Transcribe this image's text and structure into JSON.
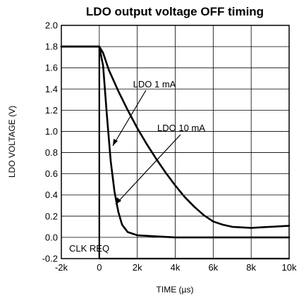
{
  "chart_data": {
    "type": "line",
    "title": "LDO output voltage OFF timing",
    "xlabel": "TIME (µs)",
    "ylabel": "LDO VOLTAGE (V)",
    "xlim": [
      -2000,
      10000
    ],
    "ylim": [
      -0.2,
      2.0
    ],
    "x_ticks": [
      -2000,
      0,
      2000,
      4000,
      6000,
      8000,
      10000
    ],
    "x_tick_labels": [
      "-2k",
      "0",
      "2k",
      "4k",
      "6k",
      "8k",
      "10k"
    ],
    "y_ticks": [
      -0.2,
      0.0,
      0.2,
      0.4,
      0.6,
      0.8,
      1.0,
      1.2,
      1.4,
      1.6,
      1.8,
      2.0
    ],
    "y_tick_labels": [
      "-0.2",
      "0.0",
      "0.2",
      "0.4",
      "0.6",
      "0.8",
      "1.0",
      "1.2",
      "1.4",
      "1.6",
      "1.8",
      "2.0"
    ],
    "grid": true,
    "series": [
      {
        "name": "LDO 1 mA",
        "x": [
          -2000,
          -1000,
          0,
          200,
          500,
          1000,
          1500,
          2000,
          2500,
          3000,
          3500,
          4000,
          4500,
          5000,
          5500,
          6000,
          6500,
          7000,
          8000,
          9000,
          10000
        ],
        "y": [
          1.8,
          1.8,
          1.8,
          1.74,
          1.58,
          1.38,
          1.2,
          1.03,
          0.88,
          0.74,
          0.61,
          0.49,
          0.38,
          0.29,
          0.21,
          0.15,
          0.12,
          0.1,
          0.09,
          0.1,
          0.11
        ]
      },
      {
        "name": "LDO 10 mA",
        "x": [
          -2000,
          -1000,
          0,
          200,
          400,
          600,
          800,
          1000,
          1200,
          1500,
          2000,
          3000,
          4000,
          6000,
          8000,
          10000
        ],
        "y": [
          1.8,
          1.8,
          1.8,
          1.62,
          1.15,
          0.72,
          0.43,
          0.24,
          0.12,
          0.05,
          0.02,
          0.01,
          0.0,
          0.0,
          0.0,
          0.0
        ]
      },
      {
        "name": "CLK REQ",
        "x": [
          -2000,
          0,
          0,
          10000
        ],
        "y": [
          1.8,
          1.8,
          -0.2,
          -0.2
        ]
      }
    ],
    "annotations": [
      {
        "text": "LDO 1 mA",
        "series": "LDO 1 mA"
      },
      {
        "text": "LDO 10 mA",
        "series": "LDO 10 mA"
      },
      {
        "text": "CLK REQ",
        "series": "CLK REQ"
      }
    ]
  }
}
